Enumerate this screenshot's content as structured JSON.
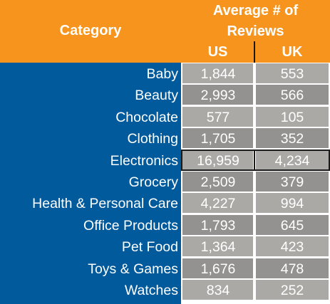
{
  "chart_data": {
    "type": "table",
    "title": "",
    "columns": {
      "category": "Category",
      "group_line1": "Average # of",
      "group_line2": "Reviews",
      "us": "US",
      "uk": "UK"
    },
    "rows": [
      {
        "category": "Baby",
        "us": "1,844",
        "uk": "553"
      },
      {
        "category": "Beauty",
        "us": "2,993",
        "uk": "566"
      },
      {
        "category": "Chocolate",
        "us": "577",
        "uk": "105"
      },
      {
        "category": "Clothing",
        "us": "1,705",
        "uk": "352"
      },
      {
        "category": "Electronics",
        "us": "16,959",
        "uk": "4,234",
        "highlighted": true
      },
      {
        "category": "Grocery",
        "us": "2,509",
        "uk": "379"
      },
      {
        "category": "Health & Personal Care",
        "us": "4,227",
        "uk": "994"
      },
      {
        "category": "Office Products",
        "us": "1,793",
        "uk": "645"
      },
      {
        "category": "Pet Food",
        "us": "1,364",
        "uk": "423"
      },
      {
        "category": "Toys & Games",
        "us": "1,676",
        "uk": "478"
      },
      {
        "category": "Watches",
        "us": "834",
        "uk": "252"
      }
    ],
    "colors": {
      "header": "#F7941D",
      "category_band": "#005A9C",
      "cell_light": "#ABA9A6",
      "cell_dark": "#949290",
      "text": "#FFFFFF",
      "highlight_border": "#1B1B1B"
    }
  }
}
